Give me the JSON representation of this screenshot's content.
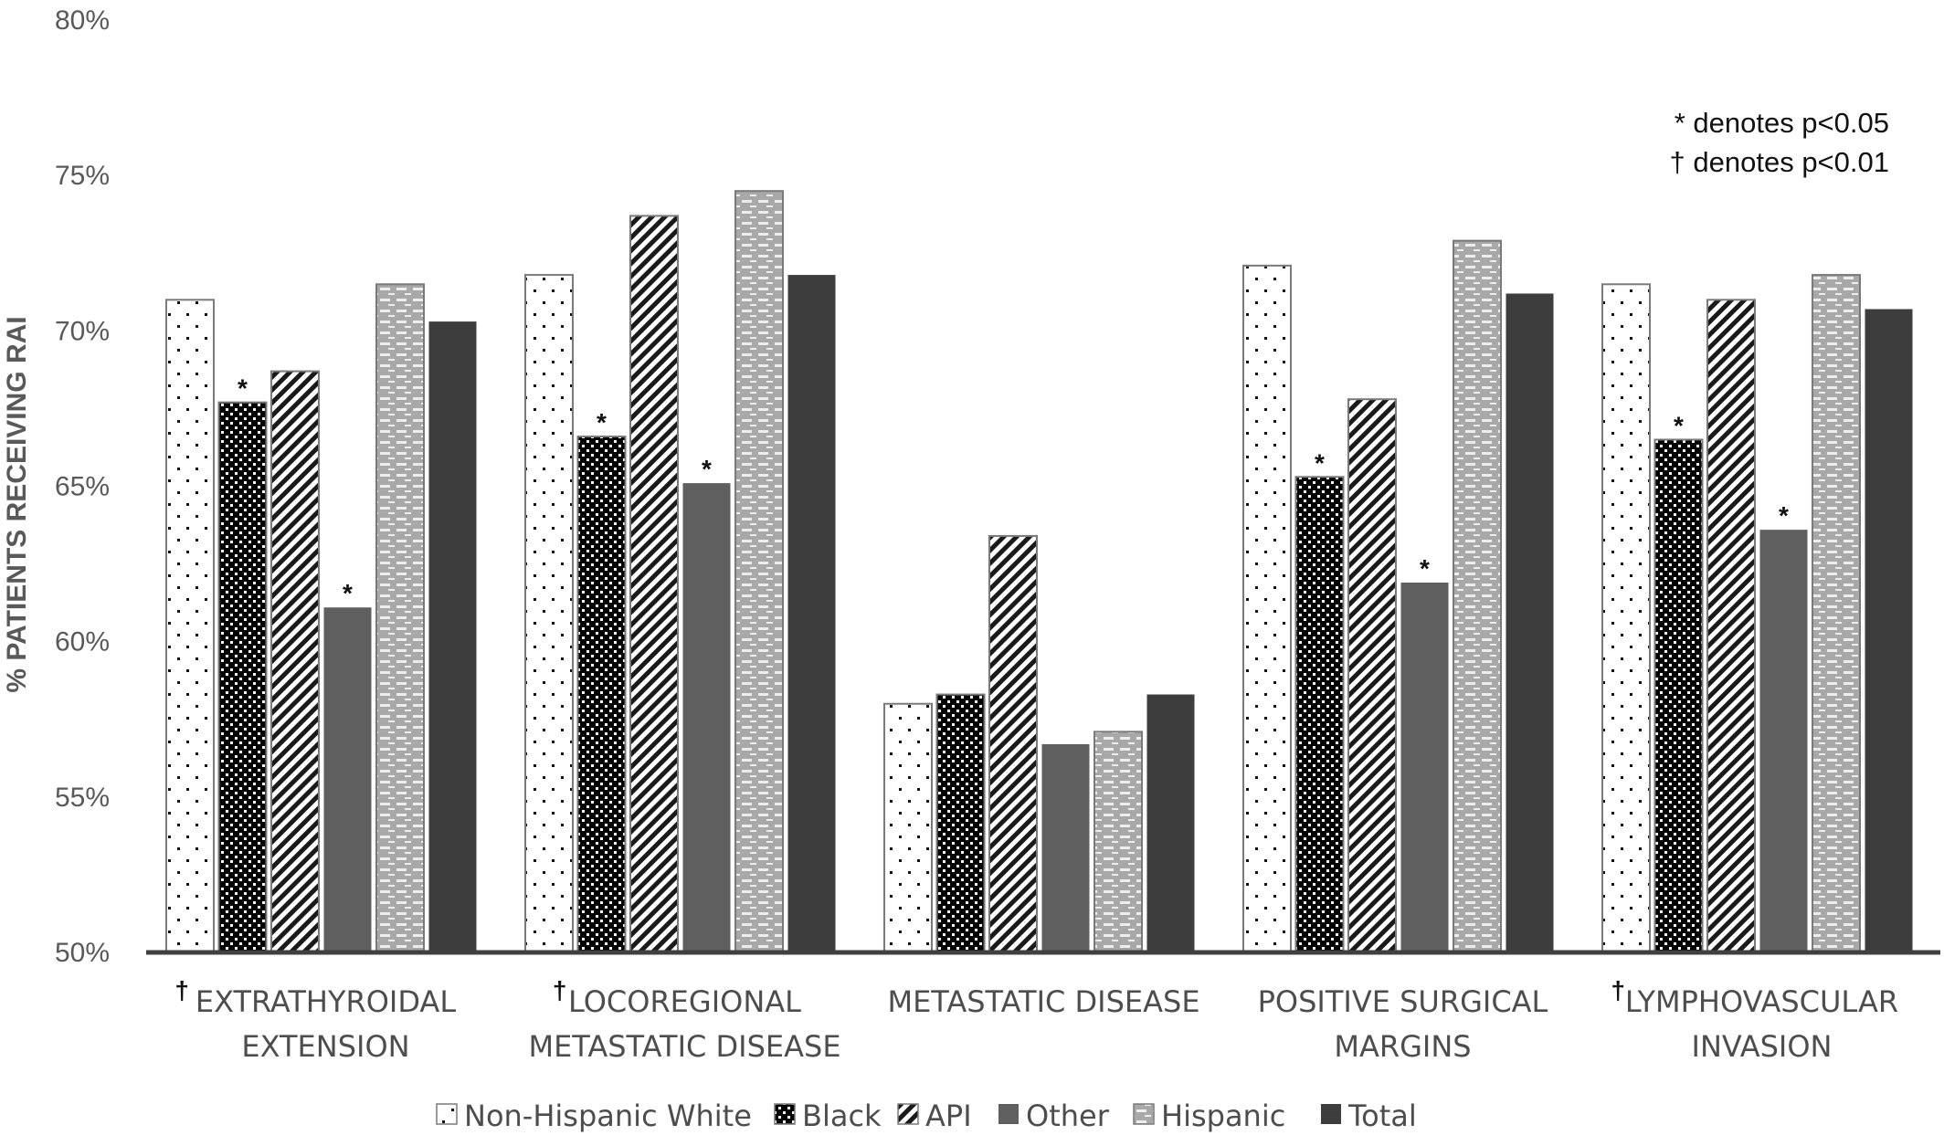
{
  "chart_data": {
    "type": "bar",
    "ylabel": "% PATIENTS RECEIVING RAI",
    "ylim": [
      50,
      80
    ],
    "ytick_values": [
      50,
      55,
      60,
      65,
      70,
      75,
      80
    ],
    "ytick_labels": [
      "50%",
      "55%",
      "60%",
      "65%",
      "70%",
      "75%",
      "80%"
    ],
    "categories": [
      {
        "lines": [
          "EXTRATHYROIDAL",
          "EXTENSION"
        ],
        "marker": "†"
      },
      {
        "lines": [
          "LOCOREGIONAL",
          "METASTATIC DISEASE"
        ],
        "marker": "†"
      },
      {
        "lines": [
          "METASTATIC DISEASE"
        ],
        "marker": ""
      },
      {
        "lines": [
          "POSITIVE SURGICAL",
          "MARGINS"
        ],
        "marker": ""
      },
      {
        "lines": [
          "LYMPHOVASCULAR",
          "INVASION"
        ],
        "marker": "†"
      }
    ],
    "series": [
      {
        "name": "Non-Hispanic White",
        "pattern": "dots",
        "values": [
          71.0,
          71.8,
          58.0,
          72.1,
          71.5
        ],
        "sig": [
          "",
          "",
          "",
          "",
          ""
        ]
      },
      {
        "name": "Black",
        "pattern": "checker",
        "values": [
          67.7,
          66.6,
          58.3,
          65.3,
          66.5
        ],
        "sig": [
          "*",
          "*",
          "",
          "*",
          "*"
        ]
      },
      {
        "name": "API",
        "pattern": "diagonal",
        "values": [
          68.7,
          73.7,
          63.4,
          67.8,
          71.0
        ],
        "sig": [
          "",
          "",
          "",
          "",
          ""
        ]
      },
      {
        "name": "Other",
        "pattern": "solid-gray",
        "values": [
          61.1,
          65.1,
          56.7,
          61.9,
          63.6
        ],
        "sig": [
          "*",
          "*",
          "",
          "*",
          "*"
        ]
      },
      {
        "name": "Hispanic",
        "pattern": "dashes",
        "values": [
          71.5,
          74.5,
          57.1,
          72.9,
          71.8
        ],
        "sig": [
          "",
          "",
          "",
          "",
          ""
        ]
      },
      {
        "name": "Total",
        "pattern": "solid-dark",
        "values": [
          70.3,
          71.8,
          58.3,
          71.2,
          70.7
        ],
        "sig": [
          "",
          "",
          "",
          "",
          ""
        ]
      }
    ],
    "annotations": [
      "* denotes p<0.05",
      "† denotes p<0.01"
    ],
    "legend_position": "bottom",
    "grid": false
  },
  "colors": {
    "axis": "#404040",
    "other_fill": "#5f5f5f",
    "total_fill": "#3d3d3d",
    "hispanic_fill": "#a8a8a8",
    "bar_border": "#7a7a7a"
  }
}
